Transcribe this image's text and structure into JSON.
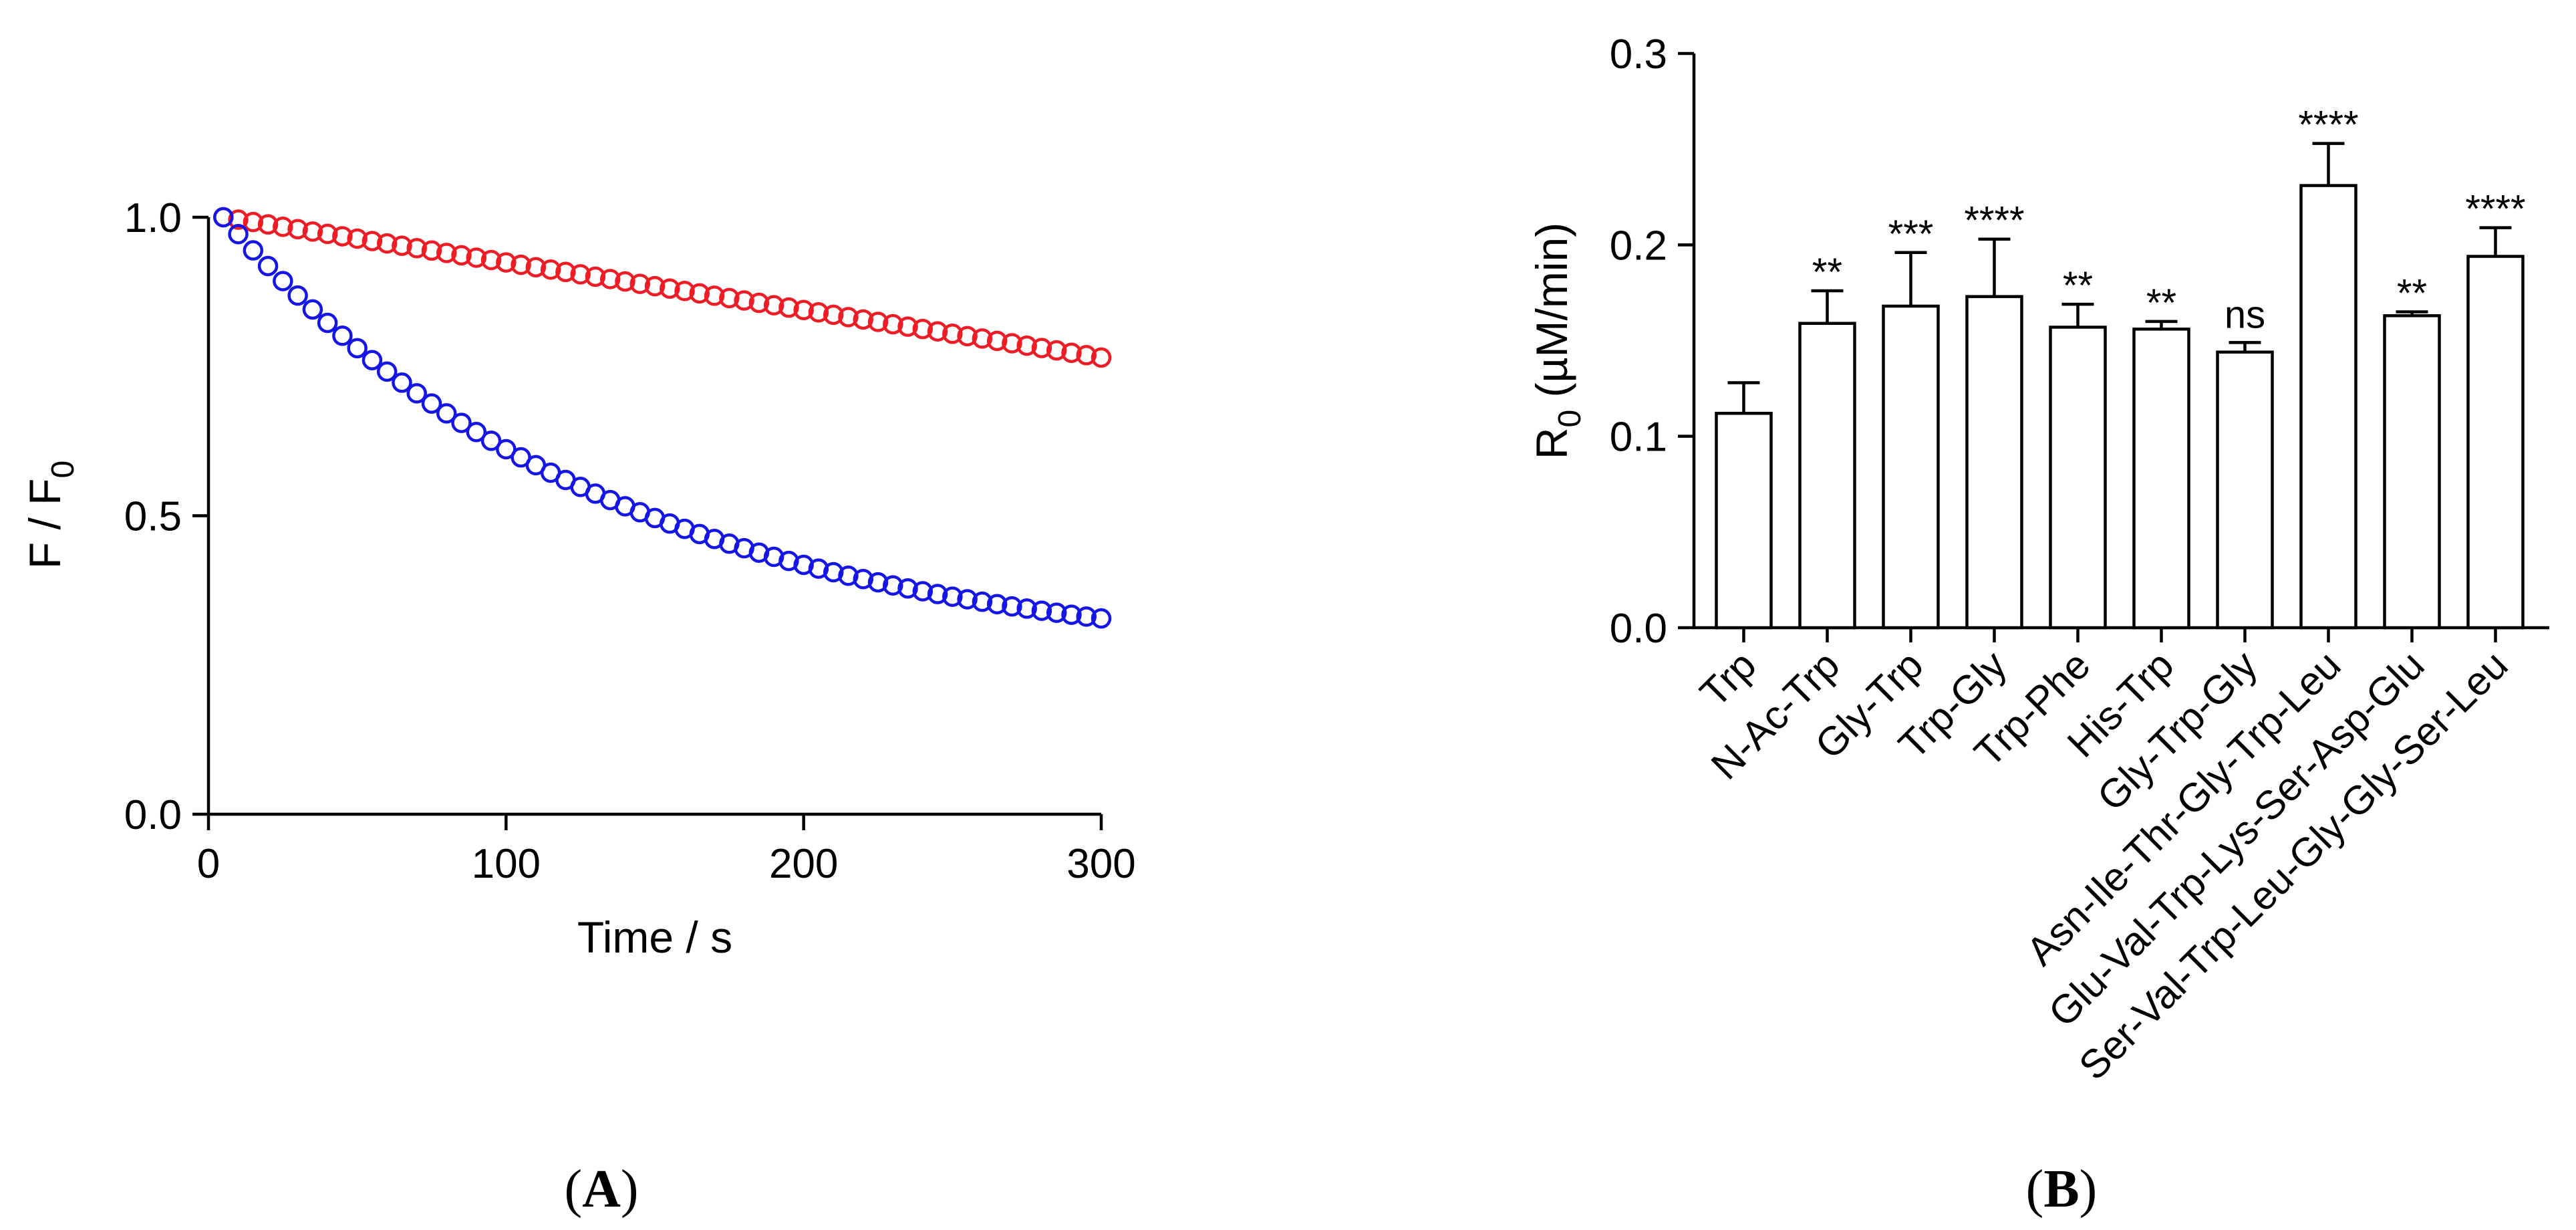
{
  "chart_data": [
    {
      "panel": "A",
      "type": "scatter",
      "xlabel": "Time / s",
      "ylabel_main": "F / F",
      "ylabel_sub": "0",
      "xlim": [
        0,
        300
      ],
      "ylim": [
        0,
        1.0
      ],
      "xticks": [
        "0",
        "100",
        "200",
        "300"
      ],
      "yticks": [
        "0.0",
        "0.5",
        "1.0"
      ],
      "series": [
        {
          "color": "#ee1c25",
          "x_start": 5,
          "x_step": 5,
          "count": 60,
          "y_start": 1.0,
          "y_end": 0.765
        },
        {
          "color": "#1515e6",
          "x_start": 5,
          "x_step": 5,
          "count": 60,
          "y_start": 1.0,
          "y_end": 0.328
        }
      ]
    },
    {
      "panel": "B",
      "type": "bar",
      "ylabel_main": "R",
      "ylabel_sub": "0",
      "ylabel_unit": " (µM/min)",
      "ylim": [
        0,
        0.3
      ],
      "yticks": [
        "0.0",
        "0.1",
        "0.2",
        "0.3"
      ],
      "categories": [
        "Trp",
        "N-Ac-Trp",
        "Gly-Trp",
        "Trp-Gly",
        "Trp-Phe",
        "His-Trp",
        "Gly-Trp-Gly",
        "Asn-Ile-Thr-Gly-Trp-Leu",
        "Glu-Val-Trp-Lys-Ser-Asp-Glu",
        "Ser-Val-Trp-Leu-Gly-Gly-Ser-Leu"
      ],
      "values": [
        0.112,
        0.159,
        0.168,
        0.173,
        0.157,
        0.156,
        0.144,
        0.231,
        0.163,
        0.194
      ],
      "errors": [
        0.016,
        0.017,
        0.028,
        0.03,
        0.012,
        0.004,
        0.005,
        0.022,
        0.002,
        0.015
      ],
      "significance": [
        "",
        "**",
        "***",
        "****",
        "**",
        "**",
        "ns",
        "****",
        "**",
        "****"
      ]
    }
  ],
  "labels": {
    "panel_a": "A",
    "panel_b": "B"
  }
}
